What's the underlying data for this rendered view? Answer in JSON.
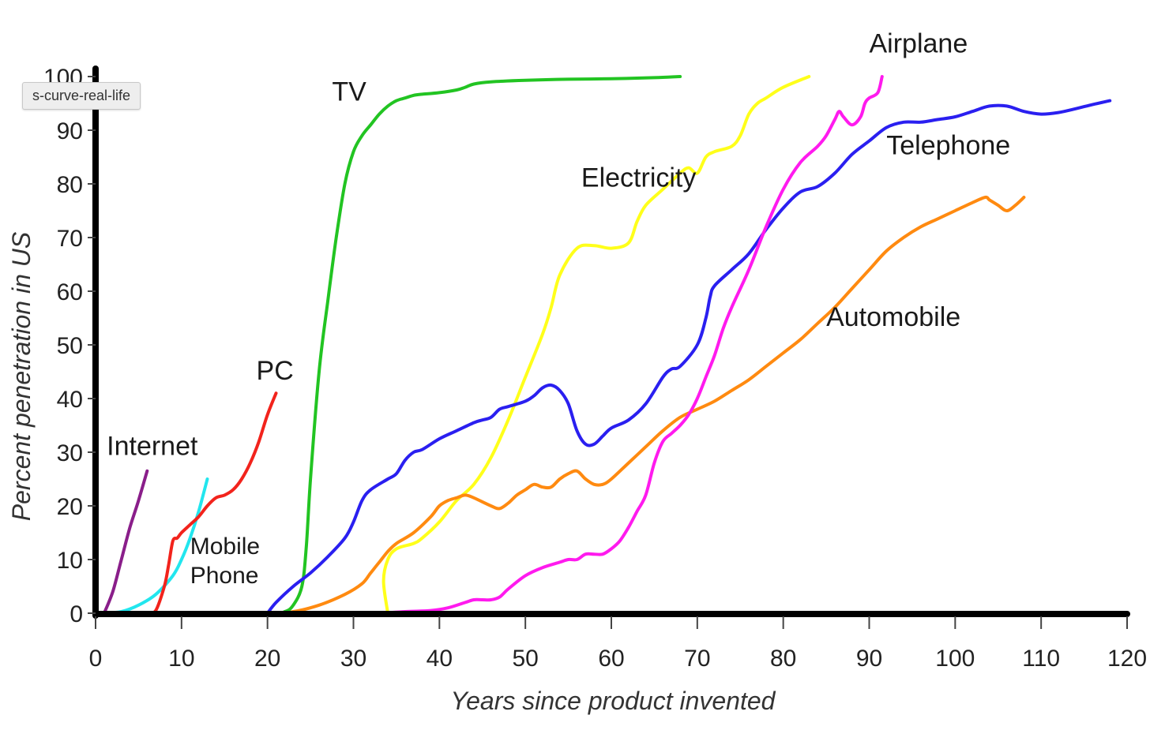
{
  "tooltip": "s-curve-real-life",
  "chart_data": {
    "type": "line",
    "title": "",
    "xlabel": "Years since product invented",
    "ylabel": "Percent penetration in US",
    "xlim": [
      0,
      120
    ],
    "ylim": [
      0,
      100
    ],
    "xticks": [
      0,
      10,
      20,
      30,
      40,
      50,
      60,
      70,
      80,
      90,
      100,
      110,
      120
    ],
    "yticks": [
      0,
      10,
      20,
      30,
      40,
      50,
      60,
      70,
      80,
      90,
      100
    ],
    "grid": false,
    "series": [
      {
        "name": "Internet",
        "label_lines": [
          "Internet"
        ],
        "color": "#8a1e8a",
        "x": [
          1,
          2,
          3,
          4,
          5,
          6
        ],
        "y": [
          0,
          4,
          10,
          16,
          21,
          26.5
        ]
      },
      {
        "name": "Mobile Phone",
        "label_lines": [
          "Mobile",
          "Phone"
        ],
        "color": "#22e6ee",
        "x": [
          1,
          3,
          5,
          7,
          9,
          10,
          11,
          12,
          13
        ],
        "y": [
          0,
          0.3,
          1.5,
          3.5,
          7,
          10,
          14,
          19,
          25
        ]
      },
      {
        "name": "PC",
        "label_lines": [
          "PC"
        ],
        "color": "#f2231c",
        "x": [
          6,
          7,
          8,
          8.5,
          9,
          9.5,
          10,
          11,
          12,
          13,
          14,
          15,
          16,
          17,
          18,
          19,
          20,
          21
        ],
        "y": [
          0,
          0.5,
          5,
          9,
          13.5,
          14,
          15,
          16.5,
          18,
          20,
          21.5,
          22,
          23,
          25,
          28,
          32,
          37,
          41
        ]
      },
      {
        "name": "TV",
        "label_lines": [
          "TV"
        ],
        "color": "#22c422",
        "x": [
          0,
          20,
          22,
          23,
          24,
          24.5,
          25,
          26,
          27,
          28,
          29,
          30,
          31,
          32,
          33,
          34,
          35,
          36,
          37,
          38,
          40,
          42,
          43,
          44,
          46,
          50,
          55,
          60,
          65,
          68
        ],
        "y": [
          0,
          0,
          0.3,
          1.5,
          5,
          12,
          25,
          45,
          58,
          70,
          80,
          86,
          89,
          91,
          93,
          94.5,
          95.5,
          96,
          96.5,
          96.7,
          97,
          97.5,
          98,
          98.6,
          99,
          99.3,
          99.5,
          99.6,
          99.8,
          100
        ]
      },
      {
        "name": "Electricity",
        "label_lines": [
          "Electricity"
        ],
        "color": "#ffff1a",
        "x": [
          34,
          33.5,
          34,
          35,
          37,
          38,
          40,
          42,
          44,
          46,
          48,
          50,
          52,
          53,
          54,
          56,
          58,
          60,
          62,
          63,
          64,
          66,
          68,
          69,
          70,
          71,
          72,
          74,
          75,
          76,
          77,
          78,
          80,
          83
        ],
        "y": [
          0,
          6,
          10,
          12,
          13,
          14,
          17,
          21,
          24,
          29,
          36,
          44,
          52,
          57,
          63,
          68,
          68.5,
          68,
          69,
          73,
          76,
          79,
          82,
          83,
          82,
          85,
          86,
          87,
          89,
          93,
          95,
          96,
          98,
          100
        ]
      },
      {
        "name": "Telephone",
        "label_lines": [
          "Telephone"
        ],
        "color": "#2a1ff0",
        "x": [
          20,
          21,
          23,
          25,
          27,
          29,
          30,
          31,
          32,
          34,
          35,
          36,
          37,
          38,
          40,
          42,
          44,
          45,
          46,
          47,
          48,
          50,
          51,
          52,
          53,
          54,
          55,
          56,
          57,
          58,
          59,
          60,
          62,
          64,
          66,
          67,
          68,
          70,
          71,
          71.5,
          72,
          74,
          76,
          78,
          80,
          82,
          84,
          86,
          88,
          90,
          92,
          94,
          96,
          98,
          100,
          102,
          104,
          106,
          108,
          110,
          112,
          114,
          116,
          118
        ],
        "y": [
          0,
          2,
          5,
          7.5,
          10.5,
          14,
          17,
          21,
          23,
          25,
          26,
          28.5,
          30,
          30.5,
          32.5,
          34,
          35.5,
          36,
          36.5,
          38,
          38.5,
          39.5,
          40.5,
          42,
          42.5,
          41.5,
          39,
          34,
          31.5,
          31.5,
          33,
          34.5,
          36,
          39,
          44,
          45.5,
          46,
          50,
          55,
          59,
          61,
          64,
          67,
          71.5,
          75.5,
          78.5,
          79.5,
          82,
          85.5,
          88,
          90.5,
          91.5,
          91.5,
          92,
          92.5,
          93.5,
          94.5,
          94.5,
          93.5,
          93,
          93.3,
          94,
          94.8,
          95.5
        ]
      },
      {
        "name": "Automobile",
        "label_lines": [
          "Automobile"
        ],
        "color": "#ff8a10",
        "x": [
          0,
          20,
          23,
          26,
          29,
          31,
          32,
          33,
          34,
          35,
          37,
          39,
          40,
          41,
          42,
          43,
          44,
          46,
          47,
          48,
          49,
          50,
          51,
          52,
          53,
          54,
          55,
          56,
          57,
          58,
          59,
          60,
          62,
          64,
          66,
          68,
          70,
          72,
          74,
          76,
          78,
          80,
          82,
          84,
          86,
          88,
          90,
          92,
          94,
          96,
          98,
          100,
          102,
          103.5,
          104,
          105,
          106,
          107,
          108
        ],
        "y": [
          0,
          0,
          0.3,
          1.5,
          3.5,
          5.5,
          7.5,
          9.5,
          11.5,
          13,
          15,
          18,
          20,
          21,
          21.5,
          22,
          21.5,
          20,
          19.5,
          20.5,
          22,
          23,
          24,
          23.5,
          23.5,
          25,
          26,
          26.5,
          25,
          24,
          24,
          25,
          28,
          31,
          34,
          36.5,
          38,
          39.5,
          41.5,
          43.5,
          46,
          48.5,
          51,
          54,
          57,
          60.5,
          64,
          67.5,
          70,
          72,
          73.5,
          75,
          76.5,
          77.5,
          77,
          76,
          75,
          76,
          77.5
        ]
      },
      {
        "name": "Airplane",
        "label_lines": [
          "Airplane"
        ],
        "color": "#ff1aee",
        "x": [
          33,
          36,
          39,
          41,
          43,
          44,
          45,
          46,
          47,
          48,
          50,
          52,
          54,
          55,
          56,
          57,
          58,
          59,
          60,
          61,
          62,
          63,
          64,
          65,
          66,
          67,
          68,
          69,
          70,
          71,
          72,
          73,
          74,
          76,
          78,
          80,
          82,
          84,
          85,
          86,
          86.5,
          87,
          88,
          89,
          89.5,
          90,
          91,
          91.5
        ],
        "y": [
          0,
          0.3,
          0.5,
          1,
          2,
          2.5,
          2.5,
          2.5,
          3,
          4.5,
          7,
          8.5,
          9.5,
          10,
          10,
          11,
          11,
          11,
          12,
          13.5,
          16,
          19,
          22,
          28,
          32,
          33.5,
          35,
          37,
          40,
          44,
          48,
          53,
          57,
          64,
          72,
          79,
          84,
          87,
          89,
          92,
          93.5,
          92.5,
          91,
          92.5,
          95,
          96,
          97,
          100
        ]
      }
    ],
    "labels": [
      {
        "series": "TV",
        "x": 29.5,
        "y": 95.5,
        "anchor": "middle"
      },
      {
        "series": "Electricity",
        "x": 56.5,
        "y": 79.5,
        "anchor": "start"
      },
      {
        "series": "Airplane",
        "x": 90,
        "y": 104.5,
        "anchor": "start"
      },
      {
        "series": "Telephone",
        "x": 92,
        "y": 85.5,
        "anchor": "start"
      },
      {
        "series": "Automobile",
        "x": 85,
        "y": 53.5,
        "anchor": "start"
      },
      {
        "series": "PC",
        "x": 18.7,
        "y": 43.5,
        "anchor": "start"
      },
      {
        "series": "Internet",
        "x": 1.3,
        "y": 29.5,
        "anchor": "start"
      },
      {
        "series": "Mobile Phone",
        "x": 11,
        "y": 11,
        "anchor": "start"
      }
    ]
  }
}
